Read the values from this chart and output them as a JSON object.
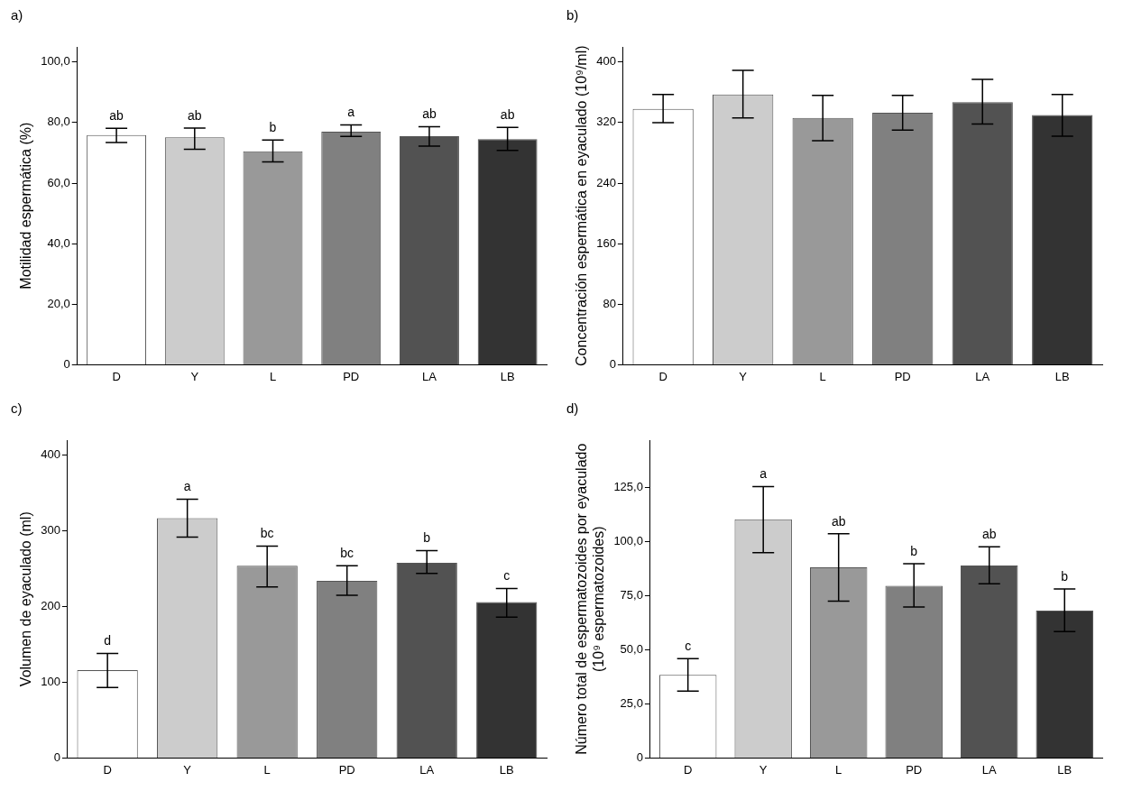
{
  "chart_data": [
    {
      "type": "bar",
      "title": "a)",
      "ylabel": "Motilidad espermática (%)",
      "categories": [
        "D",
        "Y",
        "L",
        "PD",
        "LA",
        "LB"
      ],
      "values": [
        75.9,
        75.1,
        70.5,
        77.0,
        75.5,
        74.5
      ],
      "colors": [
        "#ffffff",
        "#cccccc",
        "#999999",
        "#808080",
        "#525252",
        "#333333"
      ],
      "errors": [
        [
          73.4,
          78.1
        ],
        [
          71.2,
          78.2
        ],
        [
          67.0,
          74.2
        ],
        [
          75.4,
          79.2
        ],
        [
          72.2,
          78.6
        ],
        [
          70.8,
          78.4
        ]
      ],
      "ylim": [
        0,
        105
      ],
      "yticks": [
        0,
        {
          "value": 20,
          "label": "20,0"
        },
        {
          "value": 40,
          "label": "40,0"
        },
        {
          "value": 60,
          "label": "60,0"
        },
        {
          "value": 80,
          "label": "80,0"
        },
        {
          "value": 100,
          "label": "100,0"
        }
      ],
      "grid": false,
      "legend": false,
      "annotations": [
        {
          "text": "ab",
          "x": "D",
          "y": 78.1
        },
        {
          "text": "ab",
          "x": "Y",
          "y": 78.2
        },
        {
          "text": "b",
          "x": "L",
          "y": 74.2
        },
        {
          "text": "a",
          "x": "PD",
          "y": 79.2
        },
        {
          "text": "ab",
          "x": "LA",
          "y": 78.6
        },
        {
          "text": "ab",
          "x": "LB",
          "y": 78.4
        }
      ]
    },
    {
      "type": "bar",
      "title": "b)",
      "ylabel": "Concentración espermática en eyaculado (10⁹/ml)",
      "categories": [
        "D",
        "Y",
        "L",
        "PD",
        "LA",
        "LB"
      ],
      "values": [
        338,
        357,
        326,
        333,
        347,
        330
      ],
      "colors": [
        "#ffffff",
        "#cccccc",
        "#999999",
        "#808080",
        "#525252",
        "#333333"
      ],
      "errors": [
        [
          320,
          357
        ],
        [
          326,
          389
        ],
        [
          296,
          356
        ],
        [
          310,
          356
        ],
        [
          318,
          377
        ],
        [
          302,
          357
        ]
      ],
      "ylim": [
        0,
        420
      ],
      "yticks": [
        0,
        80,
        160,
        240,
        320,
        400
      ],
      "grid": false,
      "legend": false
    },
    {
      "type": "bar",
      "title": "c)",
      "ylabel": "Volumen de eyaculado (ml)",
      "categories": [
        "D",
        "Y",
        "L",
        "PD",
        "LA",
        "LB"
      ],
      "values": [
        116,
        317,
        254,
        234,
        258,
        206
      ],
      "colors": [
        "#ffffff",
        "#cccccc",
        "#999999",
        "#808080",
        "#525252",
        "#333333"
      ],
      "errors": [
        [
          93,
          138
        ],
        [
          292,
          342
        ],
        [
          226,
          280
        ],
        [
          215,
          254
        ],
        [
          244,
          274
        ],
        [
          186,
          224
        ]
      ],
      "ylim": [
        0,
        420
      ],
      "yticks": [
        0,
        100,
        200,
        300,
        400
      ],
      "grid": false,
      "legend": false,
      "annotations": [
        {
          "text": "d",
          "x": "D",
          "y": 138
        },
        {
          "text": "a",
          "x": "Y",
          "y": 342
        },
        {
          "text": "bc",
          "x": "L",
          "y": 280
        },
        {
          "text": "bc",
          "x": "PD",
          "y": 254
        },
        {
          "text": "b",
          "x": "LA",
          "y": 274
        },
        {
          "text": "c",
          "x": "LB",
          "y": 224
        }
      ]
    },
    {
      "type": "bar",
      "title": "d)",
      "ylabel": "Número total de espermatozoides por eyaculado\n(10⁹ espermatozoides)",
      "categories": [
        "D",
        "Y",
        "L",
        "PD",
        "LA",
        "LB"
      ],
      "values": [
        38.4,
        110.4,
        88.2,
        79.6,
        89.0,
        68.2
      ],
      "colors": [
        "#ffffff",
        "#cccccc",
        "#999999",
        "#808080",
        "#525252",
        "#333333"
      ],
      "errors": [
        [
          30.9,
          46.0
        ],
        [
          95.0,
          125.5
        ],
        [
          72.5,
          103.7
        ],
        [
          69.8,
          89.8
        ],
        [
          80.6,
          97.7
        ],
        [
          58.5,
          78.2
        ]
      ],
      "ylim": [
        0,
        147
      ],
      "yticks": [
        0,
        {
          "value": 25,
          "label": "25,0"
        },
        {
          "value": 50,
          "label": "50,0"
        },
        {
          "value": 75,
          "label": "75,0"
        },
        {
          "value": 100,
          "label": "100,0"
        },
        {
          "value": 125,
          "label": "125,0"
        }
      ],
      "grid": false,
      "legend": false,
      "annotations": [
        {
          "text": "c",
          "x": "D",
          "y": 46.0
        },
        {
          "text": "a",
          "x": "Y",
          "y": 125.5
        },
        {
          "text": "ab",
          "x": "L",
          "y": 103.7
        },
        {
          "text": "b",
          "x": "PD",
          "y": 89.8
        },
        {
          "text": "ab",
          "x": "LA",
          "y": 97.7
        },
        {
          "text": "b",
          "x": "LB",
          "y": 78.2
        }
      ]
    }
  ]
}
